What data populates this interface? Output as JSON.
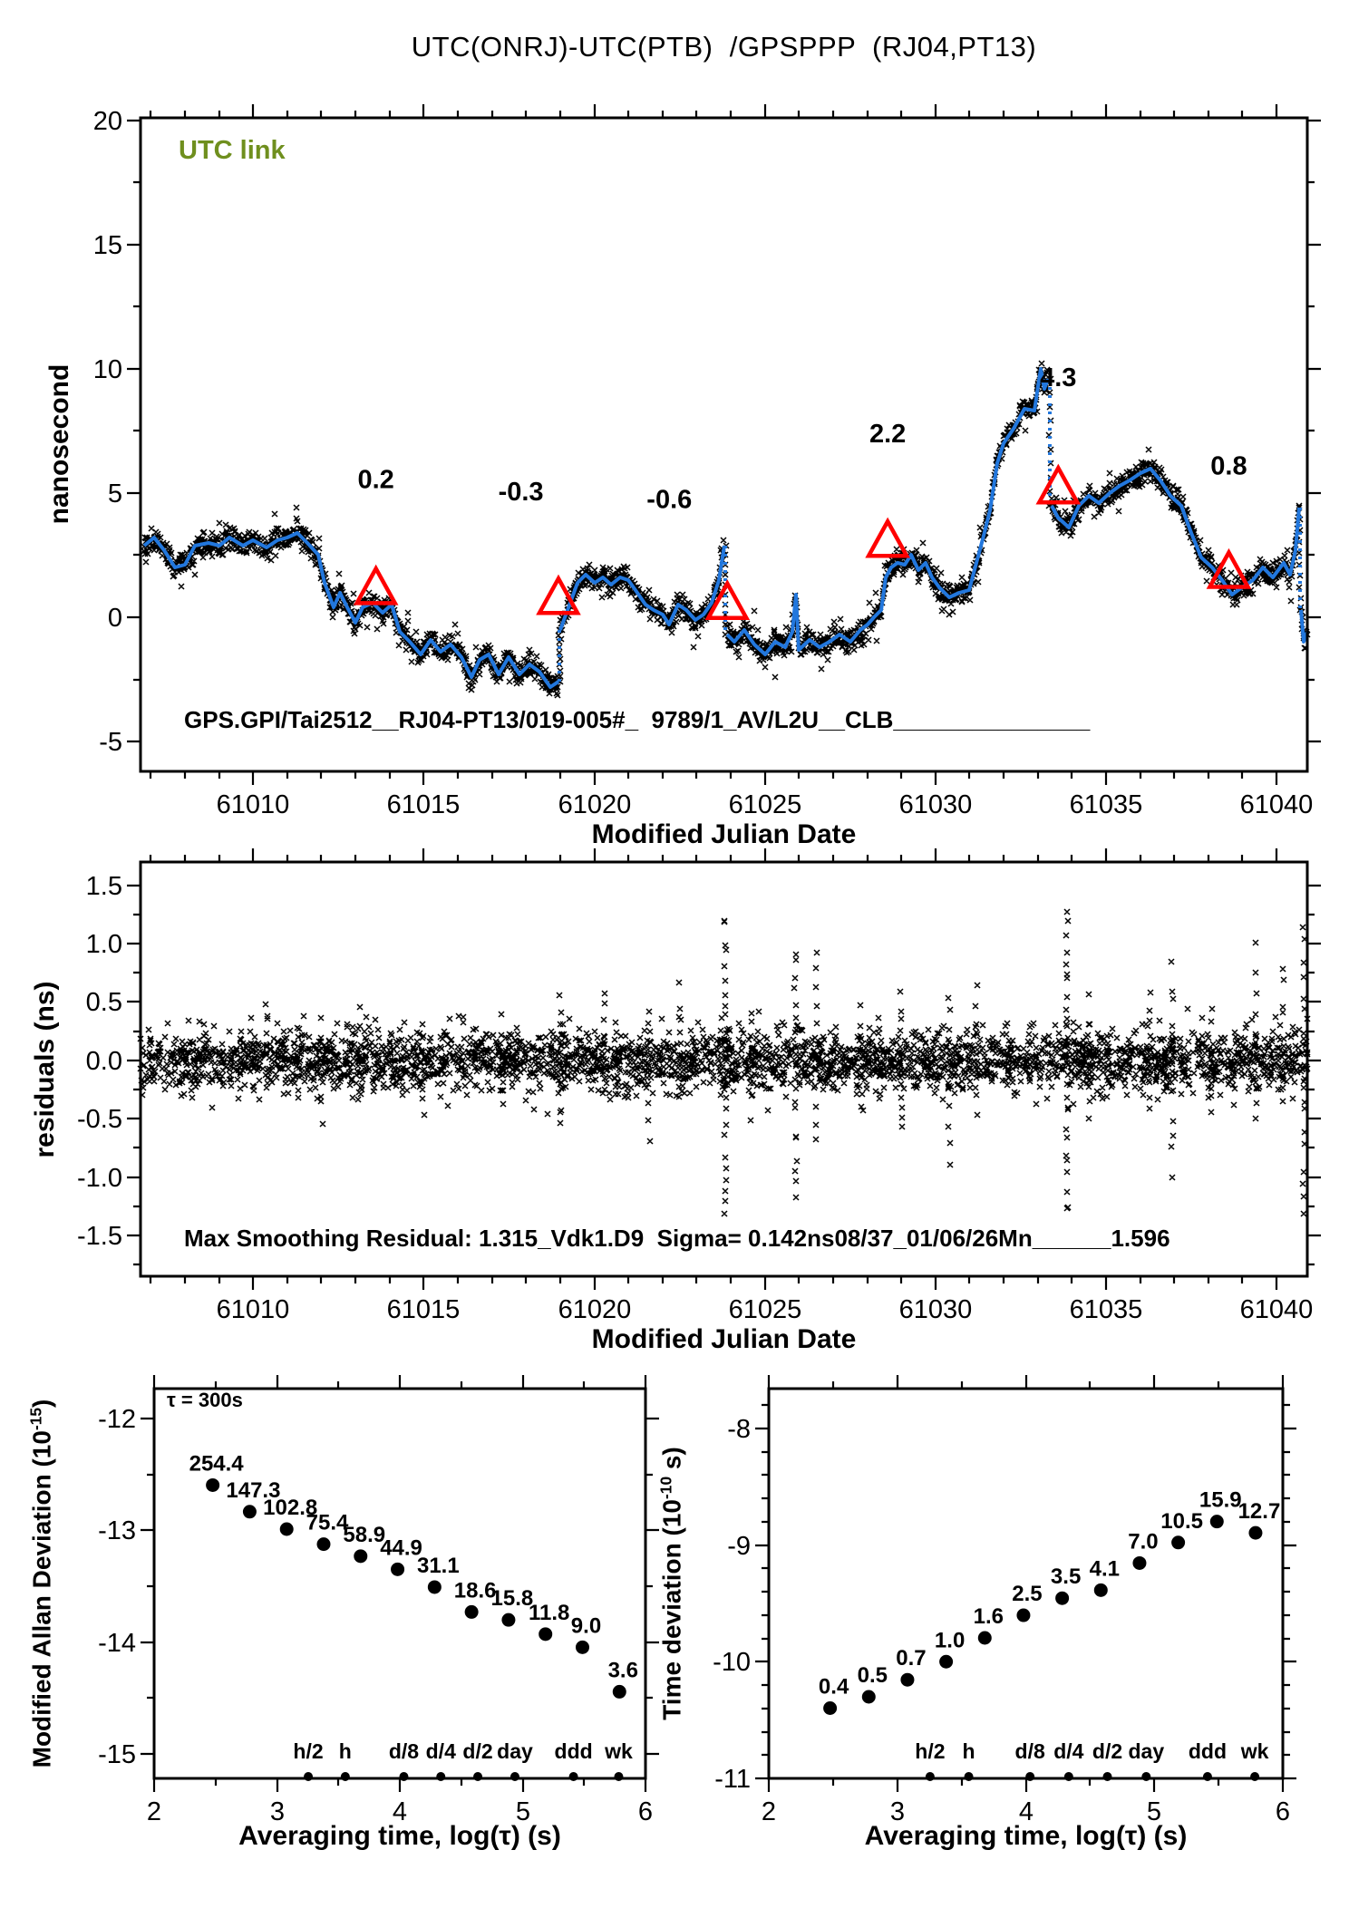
{
  "title": "UTC(ONRJ)-UTC(PTB)  /GPSPPP  (RJ04,PT13)",
  "colors": {
    "line_blue": "#2277dd",
    "accent_red": "#ff0000",
    "link_green": "#6f8f1e",
    "marker_black": "#000000"
  },
  "chart_data": [
    {
      "name": "utc-link-time-series",
      "type": "line",
      "link_label": "UTC link",
      "footer": "GPS.GPI/Tai2512__RJ04-PT13/019-005#_  9789/1_AV/L2U__CLB_______________",
      "xlabel": "Modified Julian Date",
      "ylabel": "nanosecond",
      "xlim": [
        61006.7,
        61040.9
      ],
      "ylim": [
        -6.2,
        20.1
      ],
      "xticks": [
        61010,
        61015,
        61020,
        61025,
        61030,
        61035,
        61040
      ],
      "xtick_labels": [
        "61010",
        "61015",
        "61020",
        "61025",
        "61030",
        "61035",
        "61040"
      ],
      "x_minor_step": 1,
      "yticks": [
        20,
        15,
        10,
        5,
        0,
        -5
      ],
      "ytick_labels": [
        "20",
        "15",
        "10",
        "5",
        "0",
        "-5"
      ],
      "y_minor_step": 2.5,
      "segments": [
        [
          [
            61006.8,
            2.9
          ],
          [
            61007.1,
            3.2
          ],
          [
            61007.4,
            2.7
          ],
          [
            61007.7,
            2.0
          ],
          [
            61008.0,
            2.1
          ],
          [
            61008.3,
            2.9
          ],
          [
            61008.7,
            3.0
          ],
          [
            61009.0,
            2.9
          ],
          [
            61009.3,
            3.2
          ],
          [
            61009.7,
            2.9
          ],
          [
            61010.0,
            3.1
          ],
          [
            61010.4,
            2.8
          ],
          [
            61010.7,
            3.1
          ],
          [
            61011.0,
            3.2
          ],
          [
            61011.3,
            3.4
          ],
          [
            61011.6,
            3.0
          ],
          [
            61011.9,
            2.5
          ],
          [
            61012.1,
            1.4
          ],
          [
            61012.35,
            0.4
          ],
          [
            61012.55,
            1.0
          ],
          [
            61012.75,
            0.4
          ],
          [
            61013.0,
            -0.2
          ],
          [
            61013.2,
            0.4
          ],
          [
            61013.5,
            0.6
          ],
          [
            61013.8,
            0.2
          ],
          [
            61014.05,
            0.5
          ],
          [
            61014.3,
            -0.6
          ],
          [
            61014.6,
            -1.0
          ],
          [
            61014.9,
            -1.5
          ],
          [
            61015.2,
            -0.9
          ],
          [
            61015.5,
            -1.4
          ],
          [
            61015.8,
            -1.1
          ],
          [
            61016.1,
            -1.6
          ],
          [
            61016.4,
            -2.4
          ],
          [
            61016.65,
            -1.7
          ],
          [
            61016.9,
            -1.5
          ],
          [
            61017.2,
            -2.3
          ],
          [
            61017.5,
            -1.6
          ],
          [
            61017.8,
            -2.3
          ],
          [
            61018.1,
            -1.9
          ],
          [
            61018.4,
            -2.2
          ],
          [
            61018.7,
            -2.8
          ],
          [
            61018.95,
            -2.6
          ]
        ],
        [
          [
            61019.0,
            -0.5
          ],
          [
            61019.1,
            -0.1
          ],
          [
            61019.3,
            0.6
          ],
          [
            61019.5,
            1.4
          ],
          [
            61019.75,
            1.7
          ],
          [
            61020.0,
            1.4
          ],
          [
            61020.25,
            1.6
          ],
          [
            61020.5,
            1.3
          ],
          [
            61020.75,
            1.6
          ],
          [
            61021.0,
            1.5
          ],
          [
            61021.25,
            1.0
          ],
          [
            61021.5,
            0.5
          ],
          [
            61021.75,
            0.3
          ],
          [
            61022.0,
            0.1
          ],
          [
            61022.2,
            -0.3
          ],
          [
            61022.45,
            0.5
          ],
          [
            61022.7,
            0.3
          ],
          [
            61022.95,
            -0.1
          ],
          [
            61023.2,
            0.1
          ],
          [
            61023.45,
            0.6
          ],
          [
            61023.65,
            1.5
          ],
          [
            61023.8,
            2.9
          ]
        ],
        [
          [
            61023.9,
            -0.7
          ],
          [
            61024.1,
            -1.0
          ],
          [
            61024.4,
            -0.5
          ],
          [
            61024.7,
            -1.1
          ],
          [
            61025.0,
            -1.5
          ],
          [
            61025.3,
            -1.0
          ],
          [
            61025.6,
            -1.2
          ],
          [
            61025.8,
            -0.6
          ],
          [
            61025.9,
            0.9
          ],
          [
            61026.0,
            -1.3
          ],
          [
            61026.3,
            -0.9
          ],
          [
            61026.6,
            -1.2
          ],
          [
            61026.9,
            -1.0
          ],
          [
            61027.2,
            -0.7
          ],
          [
            61027.5,
            -1.0
          ],
          [
            61027.8,
            -0.5
          ],
          [
            61028.0,
            -0.3
          ],
          [
            61028.2,
            0.0
          ],
          [
            61028.4,
            0.3
          ],
          [
            61028.55,
            1.6
          ],
          [
            61028.7,
            2.0
          ],
          [
            61028.9,
            2.2
          ],
          [
            61029.1,
            2.1
          ],
          [
            61029.3,
            2.5
          ],
          [
            61029.5,
            1.9
          ],
          [
            61029.7,
            2.2
          ],
          [
            61029.9,
            1.6
          ],
          [
            61030.1,
            1.2
          ],
          [
            61030.4,
            0.8
          ],
          [
            61030.7,
            1.0
          ],
          [
            61031.0,
            1.1
          ],
          [
            61031.2,
            2.2
          ],
          [
            61031.4,
            3.3
          ],
          [
            61031.6,
            4.3
          ],
          [
            61031.8,
            6.2
          ],
          [
            61032.0,
            7.0
          ],
          [
            61032.3,
            7.6
          ],
          [
            61032.6,
            8.4
          ],
          [
            61032.9,
            8.3
          ],
          [
            61033.0,
            9.3
          ],
          [
            61033.1,
            10.0
          ],
          [
            61033.2,
            9.2
          ],
          [
            61033.3,
            9.6
          ]
        ],
        [
          [
            61033.4,
            4.5
          ],
          [
            61033.6,
            4.0
          ],
          [
            61033.9,
            3.6
          ],
          [
            61034.2,
            4.5
          ],
          [
            61034.5,
            4.9
          ],
          [
            61034.8,
            4.6
          ],
          [
            61035.1,
            5.0
          ],
          [
            61035.4,
            5.3
          ],
          [
            61035.7,
            5.5
          ],
          [
            61036.0,
            5.8
          ],
          [
            61036.3,
            6.0
          ],
          [
            61036.6,
            5.5
          ],
          [
            61036.9,
            4.9
          ],
          [
            61037.2,
            4.5
          ],
          [
            61037.5,
            3.4
          ],
          [
            61037.8,
            2.4
          ],
          [
            61038.1,
            2.0
          ],
          [
            61038.4,
            1.5
          ],
          [
            61038.7,
            0.9
          ],
          [
            61039.0,
            1.2
          ],
          [
            61039.3,
            1.5
          ],
          [
            61039.6,
            2.0
          ],
          [
            61039.9,
            1.6
          ],
          [
            61040.2,
            2.2
          ],
          [
            61040.4,
            1.7
          ],
          [
            61040.55,
            2.7
          ],
          [
            61040.65,
            4.4
          ]
        ],
        [
          [
            61040.72,
            0.3
          ],
          [
            61040.8,
            -1.0
          ],
          [
            61040.9,
            -0.6
          ]
        ]
      ],
      "jumps": [
        {
          "x": 61018.975,
          "from": -2.6,
          "to": -0.5
        },
        {
          "x": 61023.85,
          "from": 2.9,
          "to": -0.7
        },
        {
          "x": 61033.35,
          "from": 9.6,
          "to": 4.5
        },
        {
          "x": 61040.68,
          "from": 4.4,
          "to": 0.3
        }
      ],
      "calibration_marks": [
        {
          "label": "0.2",
          "triangle": [
            61013.6,
            1.1
          ],
          "text_pos": [
            61013.6,
            5.2
          ]
        },
        {
          "label": "-0.3",
          "triangle": [
            61018.95,
            0.7
          ],
          "text_pos": [
            61017.85,
            4.7
          ]
        },
        {
          "label": "-0.6",
          "triangle": [
            61023.9,
            0.5
          ],
          "text_pos": [
            61022.2,
            4.4
          ]
        },
        {
          "label": "2.2",
          "triangle": [
            61028.6,
            3.0
          ],
          "text_pos": [
            61028.6,
            7.05
          ]
        },
        {
          "label": "4.3",
          "triangle": [
            61033.6,
            5.15
          ],
          "text_pos": [
            61033.6,
            9.3
          ]
        },
        {
          "label": "0.8",
          "triangle": [
            61038.6,
            1.75
          ],
          "text_pos": [
            61038.6,
            5.75
          ]
        }
      ]
    },
    {
      "name": "smoothing-residuals",
      "type": "scatter",
      "xlabel": "Modified Julian Date",
      "ylabel": "residuals (ns)",
      "stats_text": "Max Smoothing Residual: 1.315_Vdk1.D9  Sigma= 0.142ns08/37_01/06/26Mn______1.596",
      "xlim": [
        61006.7,
        61040.9
      ],
      "ylim": [
        -1.85,
        1.7
      ],
      "xticks": [
        61010,
        61015,
        61020,
        61025,
        61030,
        61035,
        61040
      ],
      "xtick_labels": [
        "61010",
        "61015",
        "61020",
        "61025",
        "61030",
        "61035",
        "61040"
      ],
      "x_minor_step": 1,
      "yticks": [
        1.5,
        1.0,
        0.5,
        0.0,
        -0.5,
        -1.0,
        -1.5
      ],
      "ytick_labels": [
        "1.5",
        "1.0",
        "0.5",
        "0.0",
        "-0.5",
        "-1.0",
        "-1.5"
      ],
      "y_minor_step": 0.25,
      "noise_sigma": 0.13,
      "n_points": 3200,
      "spikes": [
        [
          61010.4,
          -0.25,
          0.5,
          9
        ],
        [
          61012.0,
          -0.55,
          0.35,
          8
        ],
        [
          61013.1,
          -0.35,
          0.45,
          8
        ],
        [
          61015.0,
          -0.45,
          0.3,
          7
        ],
        [
          61017.3,
          -0.4,
          0.35,
          7
        ],
        [
          61019.0,
          -0.55,
          0.55,
          12
        ],
        [
          61020.3,
          -0.3,
          0.6,
          8
        ],
        [
          61021.6,
          -0.65,
          0.45,
          9
        ],
        [
          61022.5,
          -0.35,
          0.6,
          8
        ],
        [
          61023.85,
          -1.35,
          1.25,
          24
        ],
        [
          61024.6,
          -0.5,
          0.4,
          7
        ],
        [
          61025.9,
          -1.15,
          0.95,
          20
        ],
        [
          61026.5,
          -0.65,
          0.9,
          12
        ],
        [
          61027.8,
          -0.4,
          0.5,
          7
        ],
        [
          61029.0,
          -0.6,
          0.6,
          10
        ],
        [
          61030.4,
          -0.85,
          0.55,
          10
        ],
        [
          61031.2,
          -0.4,
          0.65,
          8
        ],
        [
          61033.85,
          -1.3,
          1.25,
          26
        ],
        [
          61034.5,
          -0.5,
          0.55,
          8
        ],
        [
          61036.3,
          -0.45,
          0.55,
          8
        ],
        [
          61036.95,
          -0.95,
          0.75,
          12
        ],
        [
          61038.1,
          -0.45,
          0.5,
          7
        ],
        [
          61039.4,
          -0.55,
          0.95,
          9
        ],
        [
          61040.2,
          -0.4,
          0.85,
          9
        ],
        [
          61040.8,
          -1.35,
          1.15,
          18
        ]
      ]
    },
    {
      "name": "modified-allan-deviation",
      "type": "scatter",
      "xlabel": "Averaging time, log(τ) (s)",
      "ylabel_parts": [
        "Modified Allan Deviation (10",
        "-15",
        ")"
      ],
      "tau_note": "τ = 300s",
      "xlim": [
        2,
        6
      ],
      "ylim": [
        -15.22,
        -11.73
      ],
      "xticks": [
        2,
        3,
        4,
        5,
        6
      ],
      "xtick_labels": [
        "2",
        "3",
        "4",
        "5",
        "6"
      ],
      "x_minor_step": 0.5,
      "yticks": [
        -12,
        -13,
        -14,
        -15
      ],
      "ytick_labels": [
        "-12",
        "-13",
        "-14",
        "-15"
      ],
      "y_minor_step": 0.5,
      "log_tau": [
        2.477,
        2.778,
        3.079,
        3.38,
        3.681,
        3.982,
        4.283,
        4.584,
        4.885,
        5.186,
        5.487,
        5.788
      ],
      "values_1e15_labels": [
        "254.4",
        "147.3",
        "102.8",
        "75.4",
        "58.9",
        "44.9",
        "31.1",
        "18.6",
        "15.8",
        "11.8",
        "9.0",
        "3.6"
      ],
      "log_dev": [
        -12.594,
        -12.832,
        -12.988,
        -13.123,
        -13.23,
        -13.348,
        -13.507,
        -13.73,
        -13.801,
        -13.928,
        -14.046,
        -14.444
      ],
      "duration_ticks": [
        {
          "label": "h/2",
          "log": 3.255
        },
        {
          "label": "h",
          "log": 3.556
        },
        {
          "label": "d/8",
          "log": 4.033
        },
        {
          "label": "d/4",
          "log": 4.334
        },
        {
          "label": "d/2",
          "log": 4.635
        },
        {
          "label": "day",
          "log": 4.937
        },
        {
          "label": "ddd",
          "log": 5.414
        },
        {
          "label": "wk",
          "log": 5.782
        }
      ]
    },
    {
      "name": "time-deviation",
      "type": "scatter",
      "xlabel": "Averaging time, log(τ) (s)",
      "ylabel_parts": [
        "Time deviation (10",
        "-10",
        " s)"
      ],
      "xlim": [
        2,
        6
      ],
      "ylim": [
        -11.0,
        -7.66
      ],
      "xticks": [
        2,
        3,
        4,
        5,
        6
      ],
      "xtick_labels": [
        "2",
        "3",
        "4",
        "5",
        "6"
      ],
      "x_minor_step": 0.5,
      "yticks": [
        -8,
        -9,
        -10,
        -11
      ],
      "ytick_labels": [
        "-8",
        "-9",
        "-10",
        "-11"
      ],
      "y_minor_step": 0.2,
      "log_tau": [
        2.477,
        2.778,
        3.079,
        3.38,
        3.681,
        3.982,
        4.283,
        4.584,
        4.885,
        5.186,
        5.487,
        5.788
      ],
      "values_1e10_labels": [
        "0.4",
        "0.5",
        "0.7",
        "1.0",
        "1.6",
        "2.5",
        "3.5",
        "4.1",
        "7.0",
        "10.5",
        "15.9",
        "12.7"
      ],
      "log_dev": [
        -10.398,
        -10.301,
        -10.155,
        -10.0,
        -9.796,
        -9.602,
        -9.456,
        -9.387,
        -9.155,
        -8.979,
        -8.799,
        -8.896
      ],
      "duration_ticks": [
        {
          "label": "h/2",
          "log": 3.255
        },
        {
          "label": "h",
          "log": 3.556
        },
        {
          "label": "d/8",
          "log": 4.033
        },
        {
          "label": "d/4",
          "log": 4.334
        },
        {
          "label": "d/2",
          "log": 4.635
        },
        {
          "label": "day",
          "log": 4.937
        },
        {
          "label": "ddd",
          "log": 5.414
        },
        {
          "label": "wk",
          "log": 5.782
        }
      ]
    }
  ]
}
